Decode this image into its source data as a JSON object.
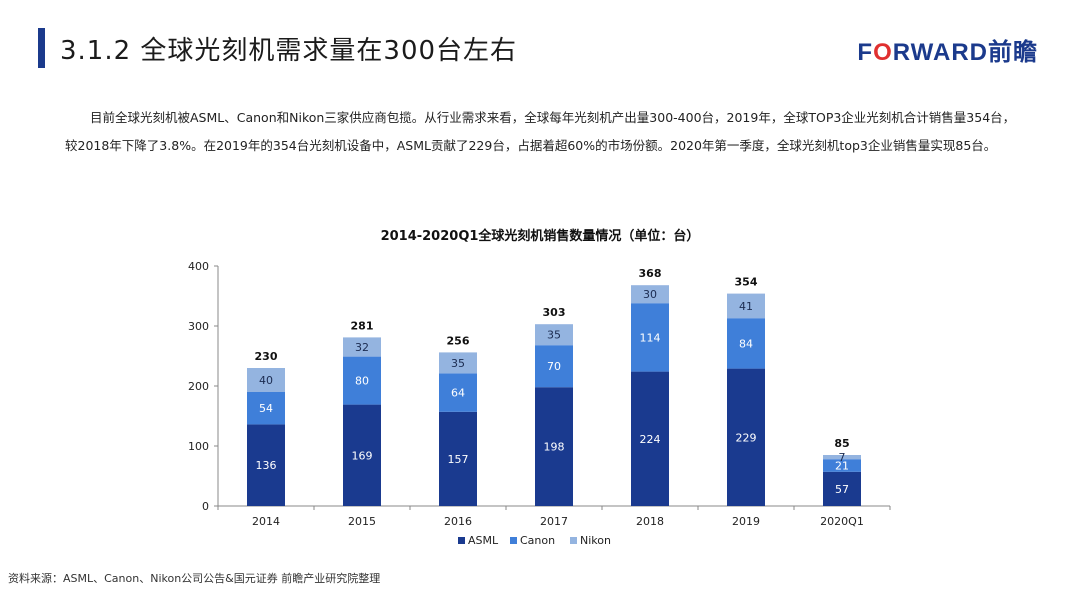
{
  "header": {
    "title": "3.1.2 全球光刻机需求量在300台左右",
    "brand_main": "F",
    "brand_o": "O",
    "brand_rest": "RWARD前瞻"
  },
  "body": {
    "paragraph": "目前全球光刻机被ASML、Canon和Nikon三家供应商包揽。从行业需求来看，全球每年光刻机产出量300-400台，2019年，全球TOP3企业光刻机合计销售量354台，较2018年下降了3.8%。在2019年的354台光刻机设备中，ASML贡献了229台，占据着超60%的市场份额。2020年第一季度，全球光刻机top3企业销售量实现85台。"
  },
  "footer": {
    "source": "资料来源：ASML、Canon、Nikon公司公告&国元证券 前瞻产业研究院整理"
  },
  "chart_data": {
    "type": "bar",
    "stacked": true,
    "title": "2014-2020Q1全球光刻机销售数量情况（单位：台）",
    "categories": [
      "2014",
      "2015",
      "2016",
      "2017",
      "2018",
      "2019",
      "2020Q1"
    ],
    "series": [
      {
        "name": "ASML",
        "values": [
          136,
          169,
          157,
          198,
          224,
          229,
          57
        ],
        "color": "#1a3a8f"
      },
      {
        "name": "Canon",
        "values": [
          54,
          80,
          64,
          70,
          114,
          84,
          21
        ],
        "color": "#3f7fd9"
      },
      {
        "name": "Nikon",
        "values": [
          40,
          32,
          35,
          35,
          30,
          41,
          7
        ],
        "color": "#94b4e0"
      }
    ],
    "totals": [
      230,
      281,
      256,
      303,
      368,
      354,
      85
    ],
    "ylim": [
      0,
      400
    ],
    "yticks": [
      0,
      100,
      200,
      300,
      400
    ],
    "legend_position": "bottom",
    "grid": false
  }
}
